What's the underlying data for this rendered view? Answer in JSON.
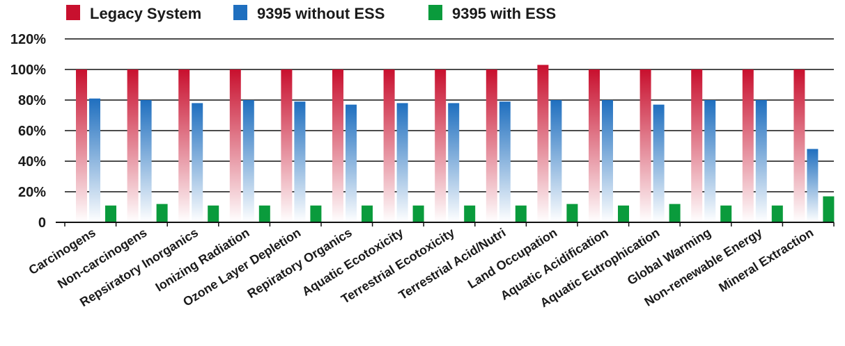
{
  "chart_data": {
    "type": "bar",
    "title": "",
    "xlabel": "",
    "ylabel": "",
    "ylim": [
      0,
      120
    ],
    "y_ticks": [
      "0",
      "20%",
      "40%",
      "60%",
      "80%",
      "100%",
      "120%"
    ],
    "y_tick_values": [
      0,
      20,
      40,
      60,
      80,
      100,
      120
    ],
    "grid": true,
    "legend_position": "top-left",
    "categories": [
      "Carcinogens",
      "Non-carcinogens",
      "Repsiratory Inorganics",
      "Ionizing Radiation",
      "Ozone Layer Depletion",
      "Repiratory Organics",
      "Aquatic Ecotoxicity",
      "Terrestrial Ecotoxicity",
      "Terrestrial Acid/Nutri",
      "Land Occupation",
      "Aquatic Acidification",
      "Aquatic Eutrophication",
      "Global Warming",
      "Non-renewable Energy",
      "Mineral Extraction"
    ],
    "series": [
      {
        "name": "Legacy System",
        "color": "#c8102e",
        "values": [
          100,
          100,
          100,
          100,
          100,
          100,
          100,
          100,
          100,
          103,
          100,
          100,
          100,
          100,
          100
        ]
      },
      {
        "name": "9395 without ESS",
        "color": "#1f6fbf",
        "values": [
          81,
          80,
          78,
          80,
          79,
          77,
          78,
          78,
          79,
          80,
          80,
          77,
          80,
          80,
          48
        ]
      },
      {
        "name": "9395 with ESS",
        "color": "#0a9b3c",
        "values": [
          11,
          12,
          11,
          11,
          11,
          11,
          11,
          11,
          11,
          12,
          11,
          12,
          11,
          11,
          17
        ]
      }
    ]
  }
}
